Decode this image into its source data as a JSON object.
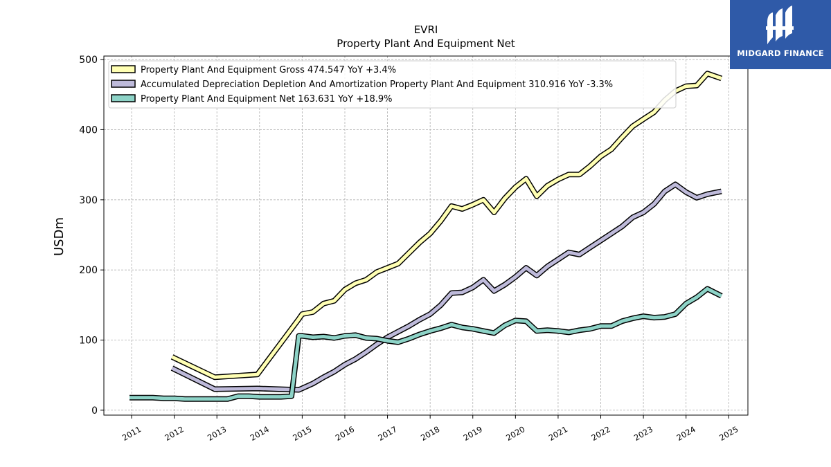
{
  "chart_data": {
    "type": "line",
    "title": "EVRI",
    "subtitle": "Property Plant And Equipment Net",
    "ylabel": "USDm",
    "xlabel": "",
    "ylim": [
      -7,
      505
    ],
    "xlim": [
      2010.35,
      2025.45
    ],
    "yticks": [
      0,
      100,
      200,
      300,
      400,
      500
    ],
    "xticks": [
      "2011",
      "2012",
      "2013",
      "2014",
      "2015",
      "2016",
      "2017",
      "2018",
      "2019",
      "2020",
      "2021",
      "2022",
      "2023",
      "2024",
      "2025"
    ],
    "grid": true,
    "legend_position": "top-left",
    "series": [
      {
        "name": "Property Plant And Equipment Gross",
        "legend": "Property Plant And Equipment Gross  474.547 YoY +3.4%",
        "color": "#ffffb3",
        "x": [
          2011.95,
          2012.95,
          2013.95,
          2014.92,
          2015.0,
          2015.25,
          2015.5,
          2015.75,
          2016.0,
          2016.25,
          2016.5,
          2016.75,
          2017.0,
          2017.25,
          2017.5,
          2017.75,
          2018.0,
          2018.25,
          2018.5,
          2018.75,
          2019.0,
          2019.25,
          2019.5,
          2019.75,
          2020.0,
          2020.25,
          2020.5,
          2020.75,
          2021.0,
          2021.25,
          2021.5,
          2021.75,
          2022.0,
          2022.25,
          2022.5,
          2022.75,
          2023.0,
          2023.25,
          2023.5,
          2023.75,
          2024.0,
          2024.25,
          2024.5,
          2024.83
        ],
        "y": [
          76,
          47,
          51,
          130,
          137,
          140,
          152,
          156,
          172,
          181,
          186,
          197,
          203,
          209,
          224,
          239,
          252,
          270,
          291,
          287,
          293,
          300,
          282,
          302,
          318,
          330,
          305,
          320,
          329,
          336,
          336,
          348,
          362,
          372,
          389,
          405,
          415,
          425,
          442,
          455,
          462,
          463,
          480,
          473
        ]
      },
      {
        "name": "Accumulated Depreciation Depletion And Amortization Property Plant And Equipment",
        "legend": "Accumulated Depreciation Depletion And Amortization Property Plant And Equipment  310.916 YoY -3.3%",
        "color": "#bebada",
        "x": [
          2011.95,
          2012.95,
          2013.95,
          2014.92,
          2015.25,
          2015.5,
          2015.75,
          2016.0,
          2016.25,
          2016.5,
          2016.75,
          2017.0,
          2017.25,
          2017.5,
          2017.75,
          2018.0,
          2018.25,
          2018.5,
          2018.75,
          2019.0,
          2019.25,
          2019.5,
          2019.75,
          2020.0,
          2020.25,
          2020.5,
          2020.75,
          2021.0,
          2021.25,
          2021.5,
          2021.75,
          2022.0,
          2022.25,
          2022.5,
          2022.75,
          2023.0,
          2023.25,
          2023.5,
          2023.75,
          2024.0,
          2024.25,
          2024.5,
          2024.83
        ],
        "y": [
          60,
          30,
          31,
          29,
          38,
          47,
          55,
          65,
          73,
          83,
          94,
          104,
          112,
          120,
          129,
          137,
          150,
          167,
          168,
          175,
          186,
          170,
          179,
          190,
          203,
          192,
          205,
          215,
          225,
          222,
          232,
          242,
          252,
          262,
          275,
          282,
          294,
          312,
          322,
          311,
          303,
          308,
          312
        ]
      },
      {
        "name": "Property Plant And Equipment Net",
        "legend": "Property Plant And Equipment Net  163.631 YoY +18.9%",
        "color": "#8dd3c7",
        "x": [
          2010.95,
          2011.25,
          2011.5,
          2011.75,
          2012.0,
          2012.25,
          2012.5,
          2012.75,
          2013.0,
          2013.25,
          2013.5,
          2013.75,
          2014.0,
          2014.25,
          2014.5,
          2014.75,
          2014.92,
          2015.0,
          2015.25,
          2015.5,
          2015.75,
          2016.0,
          2016.25,
          2016.5,
          2016.75,
          2017.0,
          2017.25,
          2017.5,
          2017.75,
          2018.0,
          2018.25,
          2018.5,
          2018.75,
          2019.0,
          2019.25,
          2019.5,
          2019.75,
          2020.0,
          2020.25,
          2020.5,
          2020.75,
          2021.0,
          2021.25,
          2021.5,
          2021.75,
          2022.0,
          2022.25,
          2022.5,
          2022.75,
          2023.0,
          2023.25,
          2023.5,
          2023.75,
          2024.0,
          2024.25,
          2024.5,
          2024.83
        ],
        "y": [
          18,
          18,
          18,
          17,
          17,
          16,
          16,
          16,
          16,
          16,
          20,
          20,
          19,
          19,
          19,
          20,
          106,
          106,
          104,
          105,
          103,
          106,
          107,
          103,
          102,
          99,
          97,
          102,
          108,
          113,
          117,
          122,
          118,
          116,
          113,
          110,
          121,
          128,
          127,
          113,
          114,
          113,
          111,
          114,
          116,
          120,
          120,
          127,
          131,
          134,
          132,
          133,
          137,
          152,
          161,
          173,
          163
        ]
      }
    ]
  }
}
